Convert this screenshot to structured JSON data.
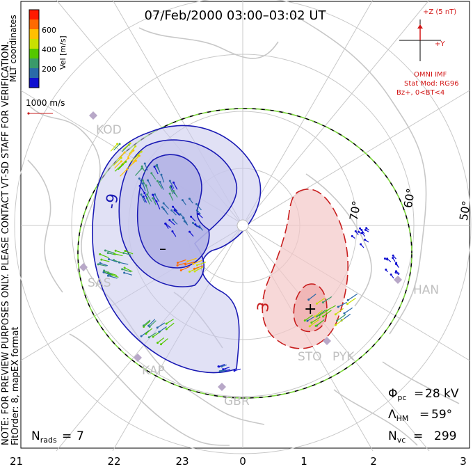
{
  "title": "07/Feb/2000 03:00–03:02 UT",
  "colorbar": {
    "label": "Vel [m/s]",
    "ticks": [
      "600",
      "400",
      "200"
    ],
    "colors": [
      "#ff1a00",
      "#ff6a00",
      "#ffc000",
      "#c8e000",
      "#54c800",
      "#3a9a6a",
      "#2a6aa8",
      "#1010d0"
    ]
  },
  "mlt_label": "MLT coordinates",
  "vector_scale_label": "1000 m/s",
  "side_note": "NOTE: FOR PREVIEW PURPOSES ONLY. PLEASE CONTACT VT-SD STAFF FOR VERIFICATION.",
  "fit_order": "FitOrder: 8, mapEX format",
  "imf": {
    "bz_label": "+Z (5 nT)",
    "by_label": "+Y",
    "source": "OMNI IMF",
    "stat_mod": "Stat Mod: RG96",
    "condition": "Bz+, 0<BT<4"
  },
  "contour_labels": {
    "neg": "-9",
    "pos": "3",
    "min_symbol": "–",
    "max_symbol": "+"
  },
  "lat_labels": [
    "70°",
    "60°",
    "50°"
  ],
  "stations": [
    "KOD",
    "SAS",
    "KAP",
    "GBR",
    "STO",
    "PYK",
    "HAN"
  ],
  "stats": {
    "phi_pc": "28 kV",
    "lambda_hm": "59°",
    "n_vc": "299",
    "n_rads": "7"
  },
  "mlt_ticks": [
    "21",
    "22",
    "23",
    "0",
    "1",
    "2",
    "3"
  ],
  "colors": {
    "negative_contour": "#1a1ab4",
    "negative_fill": "#c8c8ec",
    "positive_contour": "#c81e1e",
    "positive_fill": "#f4c8c8",
    "boundary_dash": "#7ad43a",
    "land": "#c8c8c8",
    "imf_text": "#d21414"
  }
}
